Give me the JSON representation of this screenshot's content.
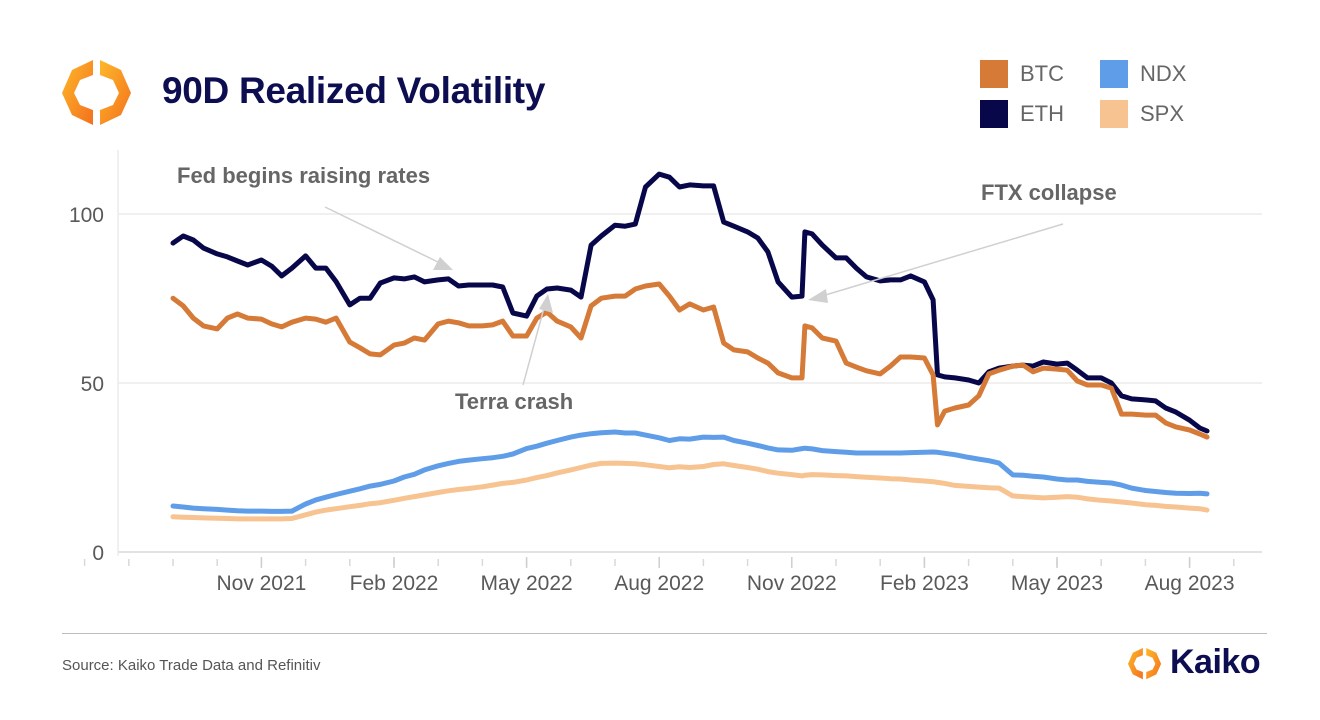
{
  "header": {
    "title": "90D Realized Volatility"
  },
  "footer": {
    "source": "Source: Kaiko Trade Data and Refinitiv",
    "brand": "Kaiko"
  },
  "colors": {
    "BTC": "#d67a37",
    "ETH": "#07074a",
    "NDX": "#5f9de8",
    "SPX": "#f7c390",
    "title": "#0d0d52"
  },
  "chart_data": {
    "type": "line",
    "title": "90D Realized Volatility",
    "xlabel": "",
    "ylabel": "",
    "ylim": [
      0,
      115
    ],
    "y_ticks": [
      0,
      50,
      100
    ],
    "y_tick_labels": [
      "0",
      "50",
      "100"
    ],
    "x_ticks": [
      "2021-11-01",
      "2022-02-01",
      "2022-05-01",
      "2022-08-01",
      "2022-11-01",
      "2023-02-01",
      "2023-05-01",
      "2023-08-01"
    ],
    "x_tick_labels": [
      "Nov 2021",
      "Feb 2022",
      "May 2022",
      "Aug 2022",
      "Nov 2022",
      "Feb 2023",
      "May 2023",
      "Aug 2023"
    ],
    "grid": "horizontal",
    "legend": {
      "position": "top-right",
      "entries": [
        "BTC",
        "NDX",
        "ETH",
        "SPX"
      ]
    },
    "annotations": [
      {
        "text": "Fed begins raising rates",
        "date": "2022-03-16",
        "value": 82
      },
      {
        "text": "Terra crash",
        "date": "2022-05-09",
        "value": 75
      },
      {
        "text": "FTX collapse",
        "date": "2022-11-08",
        "value": 76
      }
    ],
    "dates": [
      "2021-09-01",
      "2021-09-08",
      "2021-09-15",
      "2021-09-22",
      "2021-10-01",
      "2021-10-08",
      "2021-10-15",
      "2021-10-22",
      "2021-11-01",
      "2021-11-08",
      "2021-11-15",
      "2021-11-22",
      "2021-12-01",
      "2021-12-08",
      "2021-12-15",
      "2021-12-22",
      "2022-01-01",
      "2022-01-08",
      "2022-01-15",
      "2022-01-22",
      "2022-02-01",
      "2022-02-08",
      "2022-02-15",
      "2022-02-22",
      "2022-03-01",
      "2022-03-08",
      "2022-03-15",
      "2022-03-22",
      "2022-04-01",
      "2022-04-08",
      "2022-04-15",
      "2022-04-22",
      "2022-05-01",
      "2022-05-08",
      "2022-05-15",
      "2022-05-22",
      "2022-06-01",
      "2022-06-08",
      "2022-06-15",
      "2022-06-22",
      "2022-07-01",
      "2022-07-08",
      "2022-07-15",
      "2022-07-22",
      "2022-08-01",
      "2022-08-08",
      "2022-08-15",
      "2022-08-22",
      "2022-09-01",
      "2022-09-08",
      "2022-09-15",
      "2022-09-22",
      "2022-10-01",
      "2022-10-08",
      "2022-10-15",
      "2022-10-22",
      "2022-11-01",
      "2022-11-08",
      "2022-11-10",
      "2022-11-15",
      "2022-11-22",
      "2022-12-01",
      "2022-12-08",
      "2022-12-15",
      "2022-12-22",
      "2023-01-01",
      "2023-01-08",
      "2023-01-15",
      "2023-01-22",
      "2023-02-01",
      "2023-02-07",
      "2023-02-10",
      "2023-02-15",
      "2023-02-22",
      "2023-03-01",
      "2023-03-08",
      "2023-03-15",
      "2023-03-22",
      "2023-04-01",
      "2023-04-08",
      "2023-04-15",
      "2023-04-22",
      "2023-05-01",
      "2023-05-08",
      "2023-05-15",
      "2023-05-22",
      "2023-06-01",
      "2023-06-08",
      "2023-06-15",
      "2023-06-22",
      "2023-07-01",
      "2023-07-08",
      "2023-07-15",
      "2023-07-22",
      "2023-08-01",
      "2023-08-08",
      "2023-08-13"
    ],
    "series": [
      {
        "name": "SPX",
        "values": [
          10.4,
          10.3,
          10.2,
          10.1,
          10,
          9.9,
          9.8,
          9.8,
          9.8,
          9.8,
          9.8,
          9.9,
          11,
          11.8,
          12.4,
          12.8,
          13.4,
          13.8,
          14.3,
          14.6,
          15.3,
          15.9,
          16.4,
          16.9,
          17.6,
          18.1,
          18.5,
          18.8,
          19.3,
          19.8,
          20.3,
          20.6,
          21.3,
          22,
          22.6,
          23.4,
          24.3,
          25,
          25.7,
          26.2,
          26.3,
          26.2,
          26.1,
          25.8,
          25.3,
          24.9,
          25.2,
          25,
          25.3,
          25.9,
          26.1,
          25.6,
          25,
          24.5,
          23.8,
          23.3,
          22.9,
          22.5,
          22.7,
          22.9,
          22.8,
          22.6,
          22.5,
          22.3,
          22.1,
          21.9,
          21.7,
          21.6,
          21.3,
          21,
          20.8,
          20.6,
          20.3,
          19.7,
          19.4,
          19.2,
          19,
          18.9,
          16.6,
          16.4,
          16.2,
          16,
          16.2,
          16.4,
          16.2,
          15.7,
          15.3,
          15.1,
          14.8,
          14.5,
          14,
          13.8,
          13.5,
          13.3,
          13,
          12.8,
          12.4
        ]
      },
      {
        "name": "NDX",
        "values": [
          13.6,
          13.3,
          13,
          12.8,
          12.6,
          12.4,
          12.2,
          12.1,
          12.1,
          12,
          12,
          12.1,
          14.2,
          15.4,
          16.2,
          17,
          18,
          18.7,
          19.5,
          20,
          21,
          22.2,
          23,
          24.3,
          25.5,
          26.2,
          26.8,
          27.2,
          27.6,
          27.9,
          28.3,
          29,
          30.6,
          31.3,
          32.2,
          33,
          34,
          34.6,
          35,
          35.3,
          35.5,
          35.2,
          35.2,
          34.6,
          33.8,
          33,
          33.5,
          33.4,
          34,
          33.9,
          34,
          33,
          32.2,
          31.5,
          30.8,
          30.2,
          30.1,
          30.6,
          30.7,
          30.5,
          30,
          29.7,
          29.5,
          29.3,
          29.3,
          29.3,
          29.3,
          29.3,
          29.4,
          29.5,
          29.6,
          29.5,
          29.2,
          28.8,
          28,
          27.5,
          27,
          26.3,
          22.8,
          22.7,
          22.4,
          22.2,
          21.6,
          21.3,
          21.3,
          20.9,
          20.6,
          20.4,
          19.8,
          18.9,
          18.2,
          17.9,
          17.6,
          17.4,
          17.3,
          17.4,
          17.2
        ]
      },
      {
        "name": "ETH",
        "values": [
          91.4,
          93.5,
          92.3,
          89.9,
          88.2,
          87.3,
          86.1,
          84.9,
          86.4,
          84.6,
          81.7,
          84,
          87.6,
          84,
          84,
          80,
          73.1,
          75.1,
          75.1,
          79.6,
          81.1,
          80.8,
          81.4,
          79.9,
          80.5,
          80.8,
          78.7,
          79,
          79,
          79,
          78.4,
          70.7,
          69.8,
          75.7,
          77.8,
          78.1,
          77.5,
          75.4,
          90.8,
          93.5,
          96.7,
          96.4,
          97,
          108,
          111.8,
          110.9,
          108,
          108.6,
          108.3,
          108.3,
          97.6,
          96.4,
          94.7,
          92.9,
          88.8,
          79.9,
          75.4,
          75.7,
          94.7,
          94.1,
          90.8,
          87,
          87,
          84,
          81.4,
          80.2,
          80.5,
          80.5,
          81.7,
          79.9,
          74.6,
          52.4,
          51.8,
          51.5,
          50.9,
          50,
          53.3,
          54.4,
          55,
          55.3,
          55,
          56.2,
          55.6,
          55.9,
          53.8,
          51.5,
          51.5,
          50,
          46.2,
          45.3,
          45,
          44.7,
          42.6,
          41.4,
          39,
          36.7,
          35.8
        ]
      },
      {
        "name": "BTC",
        "values": [
          75.1,
          72.8,
          69.2,
          66.9,
          66,
          69.2,
          70.4,
          69.2,
          68.9,
          67.5,
          66.6,
          68,
          69.2,
          68.9,
          68,
          69.2,
          62.1,
          60.4,
          58.6,
          58.3,
          61.2,
          61.8,
          63.3,
          62.7,
          67.5,
          68.3,
          67.8,
          66.9,
          66.9,
          67.2,
          68.3,
          63.9,
          63.9,
          69.2,
          71,
          68.3,
          66.6,
          63.3,
          72.8,
          75.1,
          75.7,
          75.7,
          77.8,
          78.7,
          79.3,
          75.7,
          71.6,
          73.4,
          71.6,
          72.5,
          61.8,
          59.8,
          59.2,
          57.4,
          55.9,
          53,
          51.5,
          51.5,
          66.9,
          66.3,
          63.3,
          62.4,
          55.9,
          54.7,
          53.6,
          52.7,
          55,
          57.7,
          57.7,
          57.4,
          52.4,
          37.6,
          41.7,
          42.6,
          43.5,
          46.2,
          52.7,
          53.8,
          55,
          55.3,
          53.3,
          54.4,
          54.1,
          53.8,
          50.6,
          49.4,
          49.4,
          48.5,
          40.8,
          40.8,
          40.5,
          40.5,
          38.2,
          37,
          36.1,
          34.9,
          34
        ]
      }
    ]
  }
}
